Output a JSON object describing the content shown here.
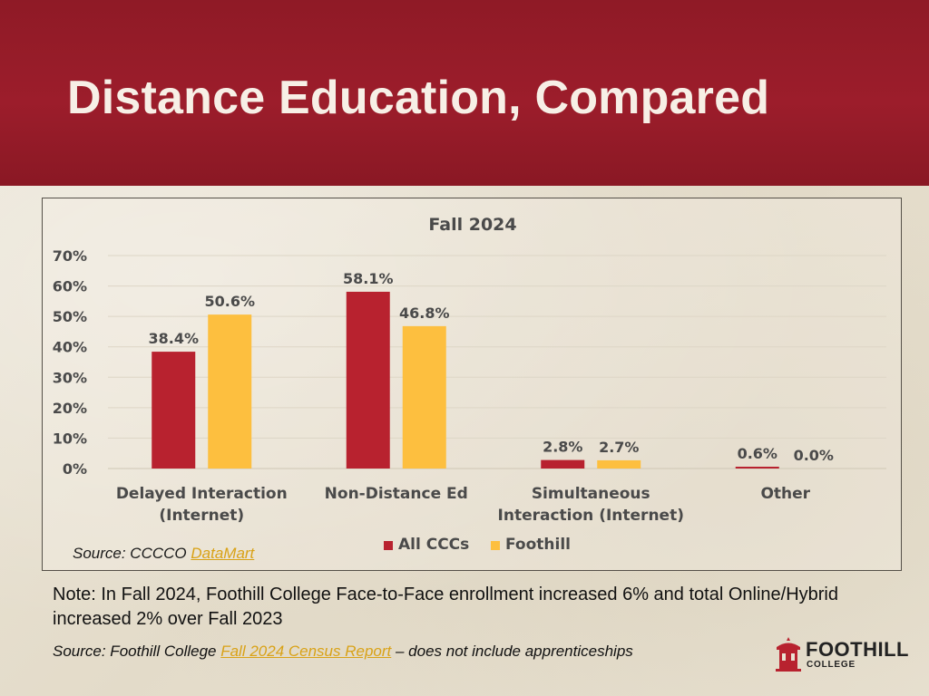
{
  "slide": {
    "title": "Distance Education, Compared",
    "note": "Note: In Fall 2024, Foothill College Face-to-Face enrollment increased 6% and total Online/Hybrid increased 2% over Fall 2023",
    "chart_source_prefix": "Source: CCCCO ",
    "chart_source_link": "DataMart",
    "footer_prefix": "Source: Foothill College ",
    "footer_link": "Fall 2024 Census Report",
    "footer_suffix": " – does not include apprenticeships",
    "logo_word1": "FOOTHILL",
    "logo_word2": "COLLEGE",
    "colors": {
      "header": "#9c1d2b",
      "all_cccs": "#b8222f",
      "foothill": "#fdbf3f",
      "link": "#d9a217"
    }
  },
  "chart_data": {
    "type": "bar",
    "title": "Fall 2024",
    "categories": [
      [
        "Delayed Interaction",
        "(Internet)"
      ],
      [
        "Non-Distance Ed"
      ],
      [
        "Simultaneous",
        "Interaction (Internet)"
      ],
      [
        "Other"
      ]
    ],
    "series": [
      {
        "name": "All CCCs",
        "color": "#b8222f",
        "values": [
          38.4,
          58.1,
          2.8,
          0.6
        ],
        "labels": [
          "38.4%",
          "58.1%",
          "2.8%",
          "0.6%"
        ]
      },
      {
        "name": "Foothill",
        "color": "#fdbf3f",
        "values": [
          50.6,
          46.8,
          2.7,
          0.0
        ],
        "labels": [
          "50.6%",
          "46.8%",
          "2.7%",
          "0.0%"
        ]
      }
    ],
    "yticks": [
      "0%",
      "10%",
      "20%",
      "30%",
      "40%",
      "50%",
      "60%",
      "70%"
    ],
    "ylim": [
      0,
      70
    ],
    "grid": true,
    "legend": "bottom"
  }
}
